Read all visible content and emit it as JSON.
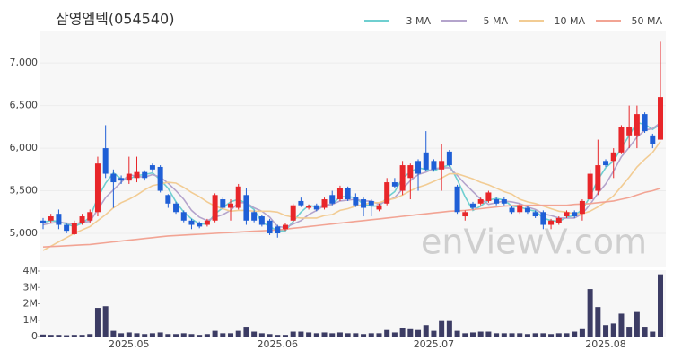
{
  "chart_data": {
    "type": "candlestick",
    "title": "삼영엠텍(054540)",
    "watermark": "enViewV.com",
    "up_color": "#e8262a",
    "down_color": "#1f5fd6",
    "volume_color": "#3c3c64",
    "grid": true,
    "legend": "top-right",
    "categories": [
      null,
      null,
      null,
      null,
      null,
      null,
      null,
      null,
      null,
      null,
      null,
      "2025.05",
      null,
      null,
      null,
      null,
      null,
      null,
      null,
      null,
      null,
      null,
      null,
      null,
      null,
      null,
      null,
      null,
      null,
      null,
      "2025.06",
      null,
      null,
      null,
      null,
      null,
      null,
      null,
      null,
      null,
      null,
      null,
      null,
      null,
      null,
      null,
      null,
      null,
      null,
      null,
      "2025.07",
      null,
      null,
      null,
      null,
      null,
      null,
      null,
      null,
      null,
      null,
      null,
      null,
      null,
      null,
      null,
      null,
      null,
      null,
      null,
      null,
      null,
      "2025.08",
      null,
      null,
      null,
      null,
      null,
      null,
      null
    ],
    "open": [
      5150,
      5150,
      5230,
      5100,
      4990,
      5120,
      5150,
      5250,
      6000,
      5700,
      5650,
      5620,
      5650,
      5720,
      5800,
      5780,
      5450,
      5350,
      5250,
      5150,
      5120,
      5100,
      5150,
      5400,
      5300,
      5300,
      5450,
      5250,
      5200,
      5150,
      5080,
      5050,
      5150,
      5380,
      5300,
      5330,
      5300,
      5450,
      5400,
      5530,
      5430,
      5400,
      5380,
      5280,
      5350,
      5600,
      5500,
      5650,
      5850,
      5950,
      5850,
      5750,
      5960,
      5550,
      5200,
      5350,
      5350,
      5380,
      5400,
      5400,
      5300,
      5250,
      5300,
      5250,
      5250,
      5100,
      5120,
      5200,
      5250,
      5230,
      5400,
      5500,
      5850,
      5850,
      5950,
      6150,
      6150,
      6400,
      6150,
      6100
    ],
    "high": [
      5180,
      5230,
      5280,
      5120,
      5150,
      5230,
      5280,
      5900,
      6270,
      5750,
      5680,
      5900,
      5900,
      5740,
      5820,
      5800,
      5460,
      5370,
      5270,
      5170,
      5140,
      5170,
      5470,
      5420,
      5400,
      5580,
      5530,
      5270,
      5220,
      5170,
      5100,
      5120,
      5350,
      5420,
      5340,
      5350,
      5420,
      5500,
      5560,
      5550,
      5470,
      5420,
      5400,
      5350,
      5650,
      5650,
      5850,
      5820,
      5870,
      6200,
      5870,
      6050,
      5980,
      5570,
      5270,
      5370,
      5420,
      5500,
      5420,
      5430,
      5320,
      5350,
      5320,
      5270,
      5270,
      5170,
      5200,
      5270,
      5270,
      5400,
      5750,
      6100,
      5870,
      6000,
      6270,
      6500,
      6500,
      6420,
      6170,
      7250
    ],
    "low": [
      5050,
      5120,
      5050,
      5000,
      4980,
      5100,
      5120,
      5200,
      5650,
      5300,
      5580,
      5580,
      5600,
      5620,
      5720,
      5480,
      5300,
      5230,
      5130,
      5050,
      5060,
      5080,
      5130,
      5280,
      5150,
      5280,
      5100,
      5130,
      5080,
      4980,
      4950,
      5030,
      5130,
      5310,
      5280,
      5260,
      5280,
      5330,
      5380,
      5380,
      5310,
      5200,
      5200,
      5260,
      5330,
      5530,
      5450,
      5400,
      5500,
      5730,
      5730,
      5500,
      5780,
      5230,
      5150,
      5280,
      5330,
      5360,
      5330,
      5330,
      5230,
      5230,
      5230,
      5180,
      5050,
      5050,
      5100,
      5180,
      5180,
      5150,
      5380,
      5450,
      5780,
      5650,
      5930,
      6000,
      6000,
      6180,
      6000,
      6100
    ],
    "close": [
      5120,
      5200,
      5100,
      5030,
      5120,
      5200,
      5250,
      5820,
      5700,
      5600,
      5620,
      5700,
      5720,
      5650,
      5750,
      5500,
      5350,
      5250,
      5150,
      5100,
      5080,
      5150,
      5450,
      5300,
      5350,
      5550,
      5150,
      5150,
      5100,
      5000,
      5000,
      5100,
      5330,
      5330,
      5320,
      5280,
      5400,
      5350,
      5530,
      5400,
      5330,
      5300,
      5330,
      5330,
      5600,
      5550,
      5800,
      5800,
      5700,
      5750,
      5750,
      5850,
      5800,
      5250,
      5250,
      5300,
      5400,
      5480,
      5350,
      5350,
      5250,
      5330,
      5250,
      5200,
      5100,
      5150,
      5180,
      5250,
      5200,
      5380,
      5700,
      5800,
      5800,
      5950,
      6250,
      6250,
      6400,
      6200,
      6050,
      6600
    ],
    "volume": [
      120000,
      100000,
      100000,
      80000,
      100000,
      100000,
      150000,
      1750000,
      1850000,
      350000,
      200000,
      250000,
      200000,
      150000,
      200000,
      250000,
      150000,
      150000,
      200000,
      150000,
      100000,
      150000,
      350000,
      200000,
      200000,
      350000,
      600000,
      300000,
      200000,
      150000,
      100000,
      100000,
      300000,
      300000,
      250000,
      200000,
      250000,
      200000,
      250000,
      200000,
      200000,
      150000,
      200000,
      200000,
      400000,
      250000,
      500000,
      450000,
      400000,
      700000,
      350000,
      950000,
      950000,
      350000,
      200000,
      250000,
      300000,
      300000,
      200000,
      200000,
      200000,
      200000,
      150000,
      200000,
      200000,
      150000,
      200000,
      200000,
      300000,
      450000,
      2900000,
      1800000,
      700000,
      800000,
      1400000,
      600000,
      1500000,
      600000,
      300000,
      3800000
    ],
    "ma_series": [
      {
        "name": "3 MA",
        "color": "#6fcfd0",
        "values": [
          5130,
          5150,
          5140,
          5110,
          5080,
          5120,
          5190,
          5420,
          5590,
          5710,
          5640,
          5640,
          5680,
          5690,
          5710,
          5630,
          5530,
          5370,
          5250,
          5170,
          5110,
          5110,
          5230,
          5300,
          5370,
          5400,
          5350,
          5280,
          5130,
          5080,
          5030,
          5030,
          5140,
          5250,
          5330,
          5310,
          5330,
          5340,
          5430,
          5430,
          5420,
          5340,
          5320,
          5320,
          5420,
          5490,
          5650,
          5720,
          5770,
          5750,
          5730,
          5780,
          5800,
          5630,
          5430,
          5270,
          5320,
          5390,
          5410,
          5390,
          5320,
          5310,
          5280,
          5260,
          5180,
          5150,
          5140,
          5190,
          5210,
          5280,
          5430,
          5630,
          5770,
          5850,
          6000,
          6150,
          6300,
          6280,
          6220,
          6280
        ]
      },
      {
        "name": "5 MA",
        "color": "#b4a4cc",
        "values": [
          5100,
          5120,
          5130,
          5120,
          5110,
          5130,
          5140,
          5280,
          5420,
          5510,
          5600,
          5690,
          5670,
          5660,
          5690,
          5660,
          5590,
          5500,
          5400,
          5270,
          5190,
          5150,
          5190,
          5220,
          5270,
          5360,
          5360,
          5300,
          5260,
          5190,
          5080,
          5070,
          5110,
          5150,
          5220,
          5270,
          5330,
          5340,
          5380,
          5390,
          5400,
          5380,
          5380,
          5340,
          5380,
          5420,
          5520,
          5620,
          5690,
          5720,
          5760,
          5770,
          5770,
          5680,
          5580,
          5490,
          5400,
          5340,
          5360,
          5380,
          5370,
          5350,
          5310,
          5280,
          5230,
          5210,
          5180,
          5180,
          5180,
          5230,
          5340,
          5470,
          5580,
          5730,
          5900,
          6010,
          6130,
          6210,
          6230,
          6300
        ]
      },
      {
        "name": "10 MA",
        "color": "#f2cc94",
        "values": [
          4800,
          4850,
          4900,
          4950,
          5000,
          5040,
          5080,
          5150,
          5220,
          5300,
          5360,
          5400,
          5450,
          5510,
          5560,
          5580,
          5600,
          5590,
          5540,
          5480,
          5430,
          5370,
          5320,
          5290,
          5260,
          5270,
          5270,
          5260,
          5260,
          5260,
          5250,
          5210,
          5190,
          5180,
          5180,
          5180,
          5210,
          5220,
          5270,
          5290,
          5320,
          5340,
          5360,
          5360,
          5390,
          5410,
          5450,
          5500,
          5540,
          5570,
          5610,
          5650,
          5700,
          5700,
          5670,
          5640,
          5600,
          5570,
          5530,
          5490,
          5460,
          5400,
          5370,
          5350,
          5320,
          5290,
          5260,
          5250,
          5230,
          5230,
          5260,
          5310,
          5370,
          5440,
          5550,
          5660,
          5780,
          5870,
          5950,
          6080
        ]
      },
      {
        "name": "50 MA",
        "color": "#f2a494",
        "values": [
          4840,
          4845,
          4850,
          4855,
          4860,
          4865,
          4870,
          4880,
          4890,
          4900,
          4910,
          4920,
          4930,
          4940,
          4950,
          4960,
          4970,
          4975,
          4980,
          4985,
          4990,
          4995,
          5000,
          5005,
          5010,
          5015,
          5020,
          5025,
          5030,
          5035,
          5040,
          5050,
          5060,
          5070,
          5080,
          5090,
          5100,
          5110,
          5120,
          5130,
          5140,
          5150,
          5160,
          5170,
          5180,
          5190,
          5200,
          5210,
          5220,
          5230,
          5240,
          5250,
          5260,
          5265,
          5270,
          5280,
          5290,
          5300,
          5310,
          5320,
          5325,
          5330,
          5330,
          5330,
          5330,
          5330,
          5330,
          5330,
          5340,
          5345,
          5350,
          5360,
          5370,
          5380,
          5400,
          5420,
          5450,
          5480,
          5500,
          5530
        ]
      }
    ],
    "ylim": [
      4600,
      7370
    ],
    "yticks": [
      {
        "value": 5000,
        "label": "5,000"
      },
      {
        "value": 5500,
        "label": "5,500"
      },
      {
        "value": 6000,
        "label": "6,000"
      },
      {
        "value": 6500,
        "label": "6,500"
      },
      {
        "value": 7000,
        "label": "7,000"
      }
    ],
    "volume_ylim": [
      0,
      4000000
    ],
    "volume_yticks": [
      0,
      {
        "value": 1000000,
        "label": "1M"
      },
      {
        "value": 2000000,
        "label": "2M"
      },
      {
        "value": 3000000,
        "label": "3M"
      },
      {
        "value": 4000000,
        "label": "4M"
      }
    ]
  }
}
